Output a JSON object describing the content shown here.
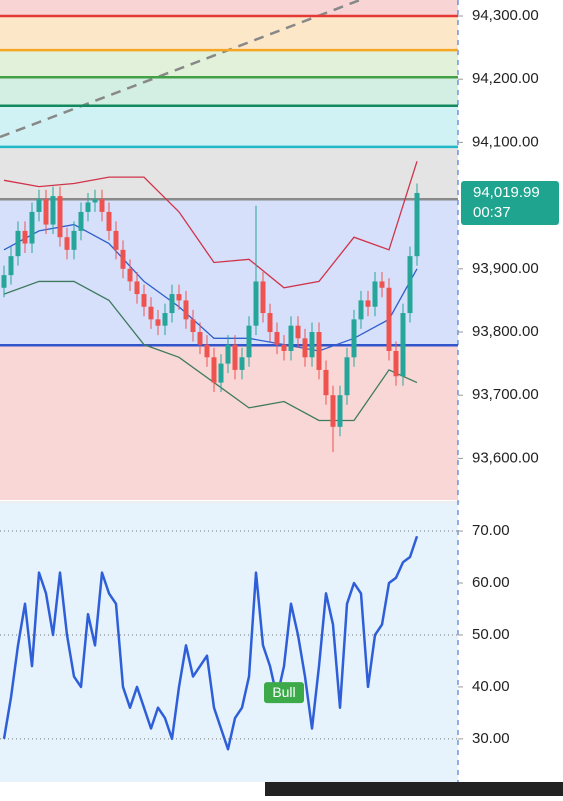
{
  "chart_data": [
    {
      "type": "candlestick",
      "open": [
        93870,
        93890,
        93920,
        93960,
        93940,
        93990,
        94010,
        93970,
        94015,
        93950,
        93930,
        93960,
        93990,
        94005,
        94010,
        93990,
        93960,
        93930,
        93900,
        93880,
        93860,
        93840,
        93820,
        93810,
        93830,
        93860,
        93850,
        93820,
        93800,
        93780,
        93760,
        93720,
        93750,
        93780,
        93740,
        93760,
        93810,
        93880,
        93830,
        93800,
        93780,
        93770,
        93810,
        93790,
        93760,
        93800,
        93740,
        93700,
        93650,
        93700,
        93760,
        93820,
        93850,
        93840,
        93880,
        93870,
        93770,
        93730,
        93830,
        93920
      ],
      "high": [
        93905,
        93935,
        93975,
        93975,
        94005,
        94025,
        94025,
        94030,
        94030,
        93965,
        93975,
        94005,
        94020,
        94025,
        94025,
        94005,
        93975,
        93945,
        93915,
        93895,
        93875,
        93855,
        93835,
        93845,
        93875,
        93875,
        93865,
        93835,
        93815,
        93795,
        93775,
        93765,
        93795,
        93795,
        93775,
        93825,
        94000,
        93895,
        93845,
        93815,
        93795,
        93825,
        93825,
        93805,
        93815,
        93815,
        93755,
        93715,
        93715,
        93775,
        93835,
        93865,
        93865,
        93895,
        93895,
        93885,
        93785,
        93845,
        93935,
        94035
      ],
      "low": [
        93855,
        93875,
        93905,
        93925,
        93925,
        93975,
        93955,
        93955,
        93935,
        93915,
        93915,
        93945,
        93975,
        93990,
        93975,
        93945,
        93915,
        93885,
        93865,
        93845,
        93825,
        93805,
        93795,
        93795,
        93815,
        93835,
        93805,
        93785,
        93765,
        93745,
        93705,
        93705,
        93735,
        93725,
        93725,
        93745,
        93795,
        93815,
        93785,
        93765,
        93755,
        93755,
        93775,
        93745,
        93745,
        93725,
        93685,
        93610,
        93635,
        93685,
        93745,
        93805,
        93825,
        93825,
        93855,
        93755,
        93715,
        93715,
        93815,
        93905
      ],
      "close": [
        93890,
        93920,
        93960,
        93940,
        93990,
        94010,
        93970,
        94015,
        93950,
        93930,
        93960,
        93990,
        94005,
        94010,
        93990,
        93960,
        93930,
        93900,
        93880,
        93860,
        93840,
        93820,
        93810,
        93830,
        93860,
        93850,
        93820,
        93800,
        93780,
        93760,
        93720,
        93750,
        93780,
        93740,
        93760,
        93810,
        93880,
        93830,
        93800,
        93780,
        93770,
        93810,
        93790,
        93760,
        93800,
        93740,
        93700,
        93650,
        93700,
        93760,
        93820,
        93850,
        93840,
        93880,
        93870,
        93770,
        93730,
        93830,
        93920,
        94020
      ],
      "up_color": "#26a69a",
      "down_color": "#ef5350",
      "ylim": [
        93534.2,
        94325.3
      ],
      "yticks": [
        {
          "value": 94300,
          "label": "94,300.00"
        },
        {
          "value": 94200,
          "label": "94,200.00"
        },
        {
          "value": 94100,
          "label": "94,100.00"
        },
        {
          "value": 93900,
          "label": "93,900.00"
        },
        {
          "value": 93800,
          "label": "93,800.00"
        },
        {
          "value": 93700,
          "label": "93,700.00"
        },
        {
          "value": 93600,
          "label": "93,600.00"
        }
      ],
      "top_fill": "#f9d4d4",
      "levels": [
        {
          "value": 94300,
          "color": "#e53935",
          "fill": "#fde7c9"
        },
        {
          "value": 94246,
          "color": "#f5a623",
          "fill": "#e2f1d9"
        },
        {
          "value": 94203,
          "color": "#43a047",
          "fill": "#d3efe3"
        },
        {
          "value": 94158,
          "color": "#138a5e",
          "fill": "#d0f2f4"
        },
        {
          "value": 94093,
          "color": "#22b8c8",
          "fill": "#e4e4e4"
        },
        {
          "value": 94010,
          "color": "#8a8a8a",
          "fill": "#d6e0fb"
        },
        {
          "value": 93779,
          "color": "#3355cc",
          "fill": "#f9d7d7"
        }
      ],
      "bands": {
        "x": [
          0,
          5,
          10,
          15,
          20,
          25,
          30,
          35,
          40,
          45,
          50,
          55,
          59
        ],
        "upper": [
          94040,
          94030,
          94035,
          94045,
          94045,
          93990,
          93910,
          93915,
          93870,
          93880,
          93950,
          93930,
          94070
        ],
        "middle": [
          93930,
          93960,
          93970,
          93940,
          93880,
          93840,
          93790,
          93790,
          93780,
          93770,
          93790,
          93820,
          93900
        ],
        "lower": [
          93860,
          93880,
          93880,
          93850,
          93780,
          93760,
          93720,
          93680,
          93690,
          93660,
          93660,
          93740,
          93720
        ],
        "upper_color": "#d0344a",
        "middle_color": "#2f5fcc",
        "lower_color": "#3f7a5f"
      },
      "last_price": {
        "value": 94019.99,
        "label": "94,019.99"
      },
      "countdown": "00:37",
      "last_color": "#1fa58f"
    },
    {
      "type": "line",
      "values": [
        30,
        38,
        48,
        56,
        44,
        62,
        58,
        50,
        62,
        50,
        42,
        40,
        54,
        48,
        62,
        58,
        56,
        40,
        36,
        40,
        36,
        32,
        36,
        34,
        30,
        40,
        48,
        42,
        44,
        46,
        36,
        32,
        28,
        34,
        36,
        42,
        62,
        48,
        44,
        38,
        44,
        56,
        50,
        42,
        32,
        44,
        58,
        52,
        36,
        56,
        60,
        58,
        40,
        50,
        52,
        60,
        61,
        64,
        65,
        69
      ],
      "color": "#2f5fd8",
      "background": "#e6f3fc",
      "ylim": [
        21.7,
        75.4
      ],
      "yticks": [
        {
          "value": 70,
          "label": "70.00"
        },
        {
          "value": 60,
          "label": "60.00"
        },
        {
          "value": 50,
          "label": "50.00"
        },
        {
          "value": 40,
          "label": "40.00"
        },
        {
          "value": 30,
          "label": "30.00"
        }
      ],
      "grid_values": [
        70,
        50,
        30
      ],
      "annotation": {
        "text": "Bull",
        "x": 40,
        "color": "#3daa4a"
      }
    }
  ]
}
